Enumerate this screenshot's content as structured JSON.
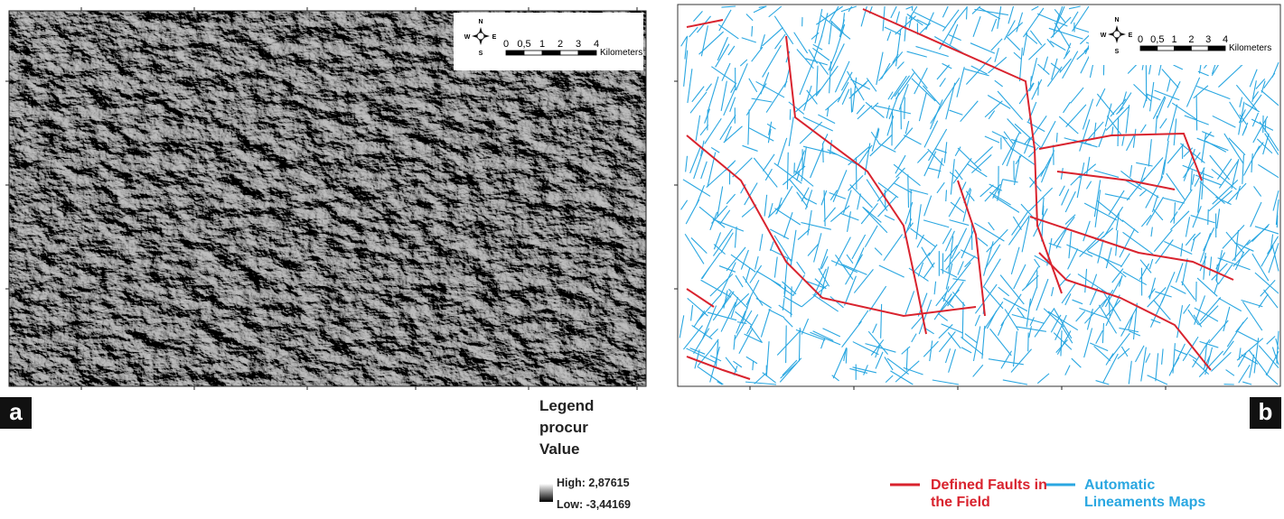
{
  "panel_a": {
    "label": "a",
    "scale_bar": {
      "ticks": [
        "0",
        "0,5",
        "1",
        "2",
        "3",
        "4"
      ],
      "unit": "Kilometers"
    },
    "compass": {
      "n": "N",
      "s": "S",
      "e": "E",
      "w": "W"
    }
  },
  "panel_b": {
    "label": "b",
    "scale_bar": {
      "ticks": [
        "0",
        "0,5",
        "1",
        "2",
        "3",
        "4"
      ],
      "unit": "Kilometers"
    },
    "compass": {
      "n": "N",
      "s": "S",
      "e": "E",
      "w": "W"
    }
  },
  "legend": {
    "title": "Legend",
    "layer": "procur",
    "field": "Value",
    "high": "High: 2,87615",
    "low": "Low: -3,44169"
  },
  "line_legend": [
    {
      "label": "Defined Faults in the Field",
      "color": "#d9232e"
    },
    {
      "label": "Automatic Lineaments Maps",
      "color": "#2aa7e1"
    }
  ]
}
